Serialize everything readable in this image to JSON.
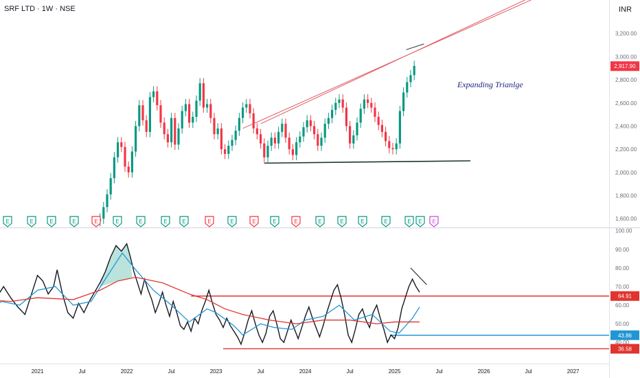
{
  "header": {
    "title": "SRF LTD · 1W · NSE",
    "currency": "INR"
  },
  "annotation": "Expanding Trianlge",
  "chart_data": [
    {
      "type": "candlestick",
      "symbol": "SRF LTD",
      "interval": "1W",
      "exchange": "NSE",
      "y_ticks": [
        "3,200.00",
        "3,000.00",
        "2,800.00",
        "2,600.00",
        "2,400.00",
        "2,200.00",
        "2,000.00",
        "1,800.00",
        "1,600.00"
      ],
      "ylim": [
        1530,
        3430
      ],
      "last_price_label": "2,917.90",
      "last_price": 2917.9,
      "close_path": [
        [
          2021.7,
          1600
        ],
        [
          2021.74,
          1700
        ],
        [
          2021.78,
          1810
        ],
        [
          2021.82,
          1950
        ],
        [
          2021.86,
          2130
        ],
        [
          2021.9,
          2260
        ],
        [
          2021.94,
          2220
        ],
        [
          2021.98,
          2050
        ],
        [
          2022.02,
          2000
        ],
        [
          2022.06,
          2180
        ],
        [
          2022.1,
          2400
        ],
        [
          2022.14,
          2580
        ],
        [
          2022.18,
          2450
        ],
        [
          2022.22,
          2350
        ],
        [
          2022.26,
          2650
        ],
        [
          2022.3,
          2700
        ],
        [
          2022.34,
          2580
        ],
        [
          2022.38,
          2430
        ],
        [
          2022.42,
          2330
        ],
        [
          2022.46,
          2260
        ],
        [
          2022.5,
          2470
        ],
        [
          2022.54,
          2240
        ],
        [
          2022.58,
          2380
        ],
        [
          2022.62,
          2530
        ],
        [
          2022.66,
          2590
        ],
        [
          2022.7,
          2430
        ],
        [
          2022.74,
          2480
        ],
        [
          2022.78,
          2620
        ],
        [
          2022.82,
          2770
        ],
        [
          2022.86,
          2560
        ],
        [
          2022.9,
          2590
        ],
        [
          2022.94,
          2470
        ],
        [
          2022.98,
          2330
        ],
        [
          2023.02,
          2380
        ],
        [
          2023.06,
          2200
        ],
        [
          2023.1,
          2160
        ],
        [
          2023.14,
          2230
        ],
        [
          2023.18,
          2280
        ],
        [
          2023.22,
          2360
        ],
        [
          2023.26,
          2470
        ],
        [
          2023.3,
          2560
        ],
        [
          2023.34,
          2590
        ],
        [
          2023.38,
          2510
        ],
        [
          2023.42,
          2380
        ],
        [
          2023.46,
          2330
        ],
        [
          2023.5,
          2250
        ],
        [
          2023.54,
          2130
        ],
        [
          2023.58,
          2230
        ],
        [
          2023.62,
          2300
        ],
        [
          2023.66,
          2250
        ],
        [
          2023.7,
          2350
        ],
        [
          2023.74,
          2420
        ],
        [
          2023.78,
          2300
        ],
        [
          2023.82,
          2200
        ],
        [
          2023.86,
          2150
        ],
        [
          2023.9,
          2260
        ],
        [
          2023.94,
          2310
        ],
        [
          2023.98,
          2390
        ],
        [
          2024.02,
          2450
        ],
        [
          2024.06,
          2400
        ],
        [
          2024.1,
          2330
        ],
        [
          2024.14,
          2230
        ],
        [
          2024.18,
          2300
        ],
        [
          2024.22,
          2420
        ],
        [
          2024.26,
          2470
        ],
        [
          2024.3,
          2540
        ],
        [
          2024.34,
          2600
        ],
        [
          2024.38,
          2630
        ],
        [
          2024.42,
          2560
        ],
        [
          2024.46,
          2400
        ],
        [
          2024.5,
          2250
        ],
        [
          2024.54,
          2320
        ],
        [
          2024.58,
          2430
        ],
        [
          2024.62,
          2550
        ],
        [
          2024.66,
          2630
        ],
        [
          2024.7,
          2600
        ],
        [
          2024.74,
          2560
        ],
        [
          2024.78,
          2480
        ],
        [
          2024.82,
          2410
        ],
        [
          2024.86,
          2350
        ],
        [
          2024.9,
          2270
        ],
        [
          2024.94,
          2210
        ],
        [
          2024.98,
          2200
        ],
        [
          2025.02,
          2250
        ],
        [
          2025.06,
          2530
        ],
        [
          2025.1,
          2690
        ],
        [
          2025.14,
          2780
        ],
        [
          2025.18,
          2840
        ],
        [
          2025.22,
          2920
        ]
      ],
      "trendlines": [
        {
          "name": "upper-channel-1",
          "color": "#e05b65",
          "points": [
            [
              2023.3,
              2380
            ],
            [
              2026.85,
              3600
            ]
          ]
        },
        {
          "name": "upper-channel-2",
          "color": "#e05b65",
          "points": [
            [
              2023.5,
              2420
            ],
            [
              2026.85,
              3630
            ]
          ]
        },
        {
          "name": "support",
          "color": "#1b3a2a",
          "points": [
            [
              2023.54,
              2080
            ],
            [
              2025.85,
              2100
            ]
          ]
        },
        {
          "name": "divergence-high",
          "color": "#1b3a2a",
          "points": [
            [
              2025.13,
              3060
            ],
            [
              2025.33,
              3110
            ]
          ]
        }
      ]
    },
    {
      "type": "line",
      "indicator": "oscillator",
      "y_ticks": [
        "100.00",
        "90.00",
        "80.00",
        "70.00",
        "60.00",
        "50.00",
        "40.00"
      ],
      "ylim": [
        29,
        101
      ],
      "series": [
        {
          "color": "#131722",
          "points": [
            [
              2020.38,
              60
            ],
            [
              2020.46,
              56
            ],
            [
              2020.54,
              64
            ],
            [
              2020.62,
              70
            ],
            [
              2020.7,
              64
            ],
            [
              2020.78,
              59
            ],
            [
              2020.86,
              55
            ],
            [
              2020.94,
              67
            ],
            [
              2021.0,
              76
            ],
            [
              2021.06,
              73
            ],
            [
              2021.12,
              66
            ],
            [
              2021.18,
              70
            ],
            [
              2021.22,
              79
            ],
            [
              2021.28,
              66
            ],
            [
              2021.34,
              56
            ],
            [
              2021.4,
              53
            ],
            [
              2021.46,
              61
            ],
            [
              2021.52,
              56
            ],
            [
              2021.58,
              62
            ],
            [
              2021.64,
              67
            ],
            [
              2021.7,
              72
            ],
            [
              2021.76,
              78
            ],
            [
              2021.82,
              86
            ],
            [
              2021.88,
              92
            ],
            [
              2021.94,
              89
            ],
            [
              2022.0,
              93
            ],
            [
              2022.04,
              86
            ],
            [
              2022.08,
              78
            ],
            [
              2022.12,
              72
            ],
            [
              2022.16,
              66
            ],
            [
              2022.2,
              74
            ],
            [
              2022.24,
              68
            ],
            [
              2022.28,
              63
            ],
            [
              2022.32,
              56
            ],
            [
              2022.36,
              61
            ],
            [
              2022.4,
              67
            ],
            [
              2022.44,
              60
            ],
            [
              2022.48,
              54
            ],
            [
              2022.52,
              62
            ],
            [
              2022.56,
              56
            ],
            [
              2022.6,
              49
            ],
            [
              2022.64,
              47
            ],
            [
              2022.68,
              51
            ],
            [
              2022.72,
              46
            ],
            [
              2022.76,
              53
            ],
            [
              2022.8,
              50
            ],
            [
              2022.84,
              57
            ],
            [
              2022.88,
              62
            ],
            [
              2022.92,
              68
            ],
            [
              2022.96,
              61
            ],
            [
              2023.0,
              55
            ],
            [
              2023.04,
              52
            ],
            [
              2023.08,
              48
            ],
            [
              2023.12,
              53
            ],
            [
              2023.16,
              49
            ],
            [
              2023.2,
              46
            ],
            [
              2023.24,
              43
            ],
            [
              2023.28,
              39
            ],
            [
              2023.32,
              45
            ],
            [
              2023.36,
              52
            ],
            [
              2023.4,
              57
            ],
            [
              2023.44,
              50
            ],
            [
              2023.48,
              44
            ],
            [
              2023.52,
              40
            ],
            [
              2023.56,
              45
            ],
            [
              2023.6,
              54
            ],
            [
              2023.64,
              57
            ],
            [
              2023.68,
              50
            ],
            [
              2023.72,
              42
            ],
            [
              2023.76,
              40
            ],
            [
              2023.8,
              46
            ],
            [
              2023.84,
              52
            ],
            [
              2023.88,
              47
            ],
            [
              2023.92,
              42
            ],
            [
              2023.96,
              48
            ],
            [
              2024.0,
              54
            ],
            [
              2024.04,
              59
            ],
            [
              2024.08,
              53
            ],
            [
              2024.12,
              48
            ],
            [
              2024.16,
              43
            ],
            [
              2024.2,
              49
            ],
            [
              2024.24,
              56
            ],
            [
              2024.28,
              62
            ],
            [
              2024.32,
              68
            ],
            [
              2024.36,
              71
            ],
            [
              2024.4,
              64
            ],
            [
              2024.44,
              55
            ],
            [
              2024.48,
              44
            ],
            [
              2024.52,
              40
            ],
            [
              2024.56,
              47
            ],
            [
              2024.6,
              55
            ],
            [
              2024.64,
              58
            ],
            [
              2024.68,
              52
            ],
            [
              2024.72,
              48
            ],
            [
              2024.76,
              56
            ],
            [
              2024.8,
              60
            ],
            [
              2024.84,
              53
            ],
            [
              2024.88,
              47
            ],
            [
              2024.92,
              40
            ],
            [
              2024.96,
              44
            ],
            [
              2025.0,
              42
            ],
            [
              2025.04,
              48
            ],
            [
              2025.08,
              58
            ],
            [
              2025.12,
              64
            ],
            [
              2025.16,
              70
            ],
            [
              2025.2,
              74
            ],
            [
              2025.24,
              70
            ],
            [
              2025.28,
              67
            ]
          ]
        },
        {
          "color": "#2196d3",
          "points": [
            [
              2020.38,
              57
            ],
            [
              2020.6,
              62
            ],
            [
              2020.8,
              60
            ],
            [
              2021.0,
              68
            ],
            [
              2021.2,
              70
            ],
            [
              2021.4,
              60
            ],
            [
              2021.6,
              62
            ],
            [
              2021.8,
              77
            ],
            [
              2021.95,
              88
            ],
            [
              2022.1,
              79
            ],
            [
              2022.3,
              68
            ],
            [
              2022.5,
              60
            ],
            [
              2022.7,
              51
            ],
            [
              2022.9,
              58
            ],
            [
              2023.0,
              56
            ],
            [
              2023.2,
              49
            ],
            [
              2023.3,
              44
            ],
            [
              2023.5,
              50
            ],
            [
              2023.65,
              48
            ],
            [
              2023.85,
              47
            ],
            [
              2024.0,
              52
            ],
            [
              2024.2,
              54
            ],
            [
              2024.38,
              60
            ],
            [
              2024.55,
              52
            ],
            [
              2024.75,
              55
            ],
            [
              2024.95,
              46
            ],
            [
              2025.05,
              45
            ],
            [
              2025.2,
              53
            ],
            [
              2025.28,
              59
            ]
          ]
        },
        {
          "color": "#e0342f",
          "points": [
            [
              2020.38,
              63
            ],
            [
              2020.7,
              62
            ],
            [
              2021.0,
              64
            ],
            [
              2021.4,
              63
            ],
            [
              2021.7,
              68
            ],
            [
              2021.9,
              73
            ],
            [
              2022.1,
              75
            ],
            [
              2022.4,
              72
            ],
            [
              2022.7,
              66
            ],
            [
              2022.9,
              63
            ],
            [
              2023.1,
              58
            ],
            [
              2023.3,
              55
            ],
            [
              2023.6,
              52
            ],
            [
              2023.9,
              50
            ],
            [
              2024.2,
              52
            ],
            [
              2024.5,
              52
            ],
            [
              2024.8,
              50
            ],
            [
              2025.0,
              51
            ],
            [
              2025.28,
              51
            ]
          ]
        }
      ],
      "levels": [
        {
          "value": 64.91,
          "label": "64.91",
          "color": "#e0342f"
        },
        {
          "value": 43.86,
          "label": "43.86",
          "color": "#2196d3"
        },
        {
          "value": 36.58,
          "label": "36.58",
          "color": "#e0342f"
        }
      ],
      "x_ticks": [
        "2021",
        "Jul",
        "2022",
        "Jul",
        "2023",
        "Jul",
        "2024",
        "Jul",
        "2025",
        "Jul",
        "2026",
        "Jul",
        "2027"
      ]
    }
  ],
  "earnings_markers": [
    "E",
    "E",
    "E",
    "E",
    "E",
    "E",
    "E",
    "E",
    "E",
    "E",
    "E",
    "E",
    "E",
    "E",
    "E",
    "E",
    "E",
    "E",
    "E",
    "E",
    "E",
    "E"
  ],
  "earnings_colors": {
    "green": "#089981",
    "red": "#f23645",
    "purple": "#c84ed8"
  }
}
